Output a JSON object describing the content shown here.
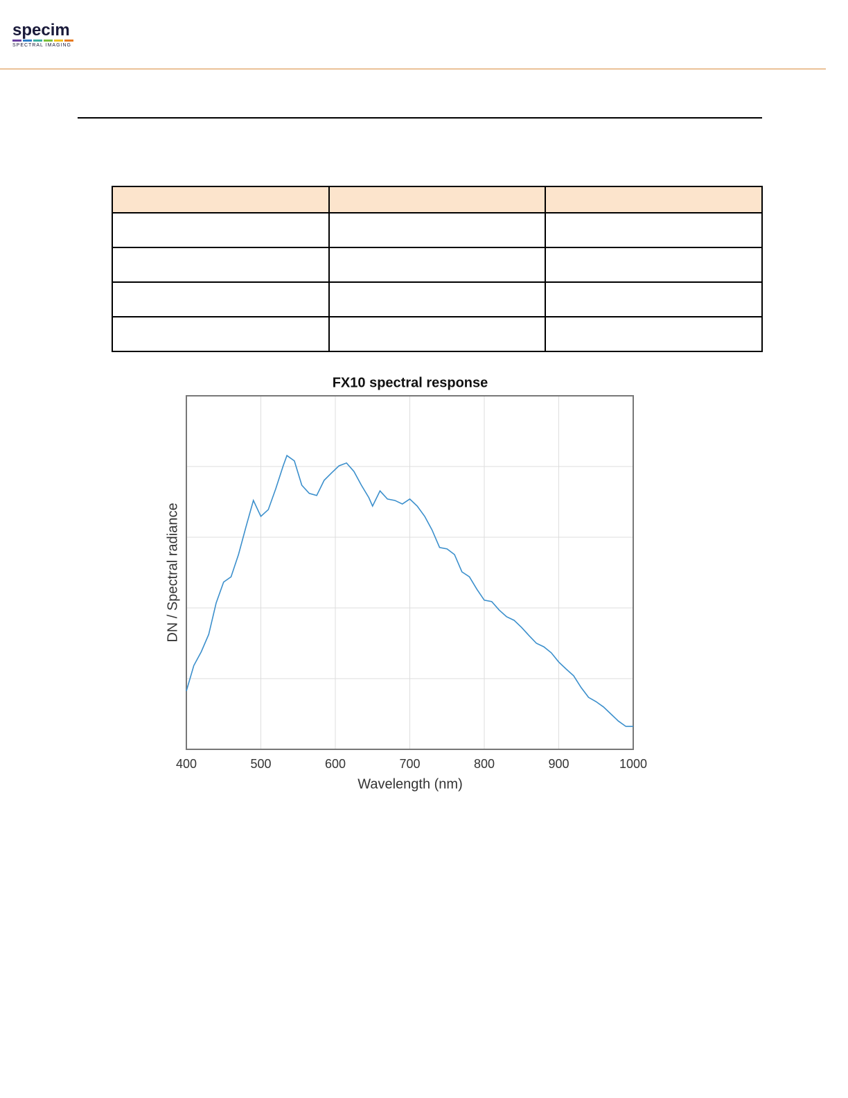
{
  "header": {
    "logo": "specim",
    "tagline": "SPECTRAL IMAGING"
  },
  "chart_data": {
    "type": "line",
    "title": "FX10 spectral response",
    "xlabel": "Wavelength (nm)",
    "ylabel": "DN / Spectral radiance",
    "x": [
      400,
      410,
      420,
      430,
      440,
      450,
      460,
      470,
      480,
      490,
      500,
      510,
      520,
      530,
      535,
      545,
      555,
      565,
      575,
      585,
      595,
      605,
      615,
      625,
      635,
      645,
      650,
      660,
      670,
      680,
      690,
      700,
      710,
      720,
      730,
      740,
      750,
      760,
      770,
      780,
      790,
      800,
      810,
      820,
      830,
      840,
      850,
      860,
      870,
      880,
      890,
      900,
      910,
      920,
      930,
      940,
      950,
      960,
      970,
      980,
      990,
      1000
    ],
    "series": [
      {
        "name": "FX10",
        "color": "#3b8fcc",
        "values": [
          0.165,
          0.237,
          0.276,
          0.325,
          0.414,
          0.473,
          0.488,
          0.551,
          0.629,
          0.704,
          0.659,
          0.678,
          0.737,
          0.802,
          0.831,
          0.816,
          0.747,
          0.724,
          0.718,
          0.761,
          0.782,
          0.802,
          0.81,
          0.786,
          0.747,
          0.712,
          0.688,
          0.731,
          0.708,
          0.704,
          0.694,
          0.708,
          0.688,
          0.659,
          0.62,
          0.571,
          0.567,
          0.551,
          0.502,
          0.488,
          0.453,
          0.422,
          0.418,
          0.394,
          0.375,
          0.365,
          0.345,
          0.322,
          0.3,
          0.29,
          0.273,
          0.247,
          0.227,
          0.208,
          0.175,
          0.147,
          0.135,
          0.12,
          0.1,
          0.08,
          0.065,
          0.065
        ]
      }
    ],
    "xlim": [
      400,
      1000
    ],
    "xticks": [
      400,
      500,
      600,
      700,
      800,
      900,
      1000
    ],
    "ylim": [
      0,
      1
    ],
    "ygrid": [
      0.2,
      0.4,
      0.6,
      0.8
    ],
    "grid": true
  }
}
